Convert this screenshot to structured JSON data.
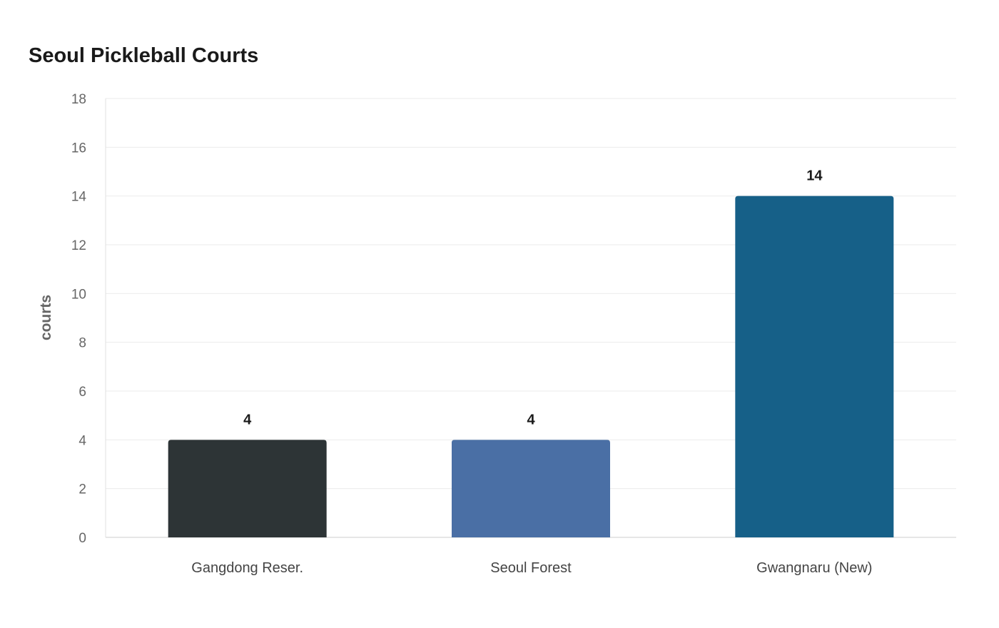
{
  "chart_data": {
    "type": "bar",
    "title": "Seoul Pickleball Courts",
    "xlabel": "",
    "ylabel": "courts",
    "categories": [
      "Gangdong Reser.",
      "Seoul Forest",
      "Gwangnaru (New)"
    ],
    "values": [
      4,
      4,
      14
    ],
    "data_labels": [
      "4",
      "4",
      "14"
    ],
    "colors": [
      "#2d3436",
      "#4a6fa5",
      "#166088"
    ],
    "ylim": [
      0,
      18
    ],
    "yticks": [
      0,
      2,
      4,
      6,
      8,
      10,
      12,
      14,
      16,
      18
    ],
    "grid": true,
    "legend": "none"
  }
}
